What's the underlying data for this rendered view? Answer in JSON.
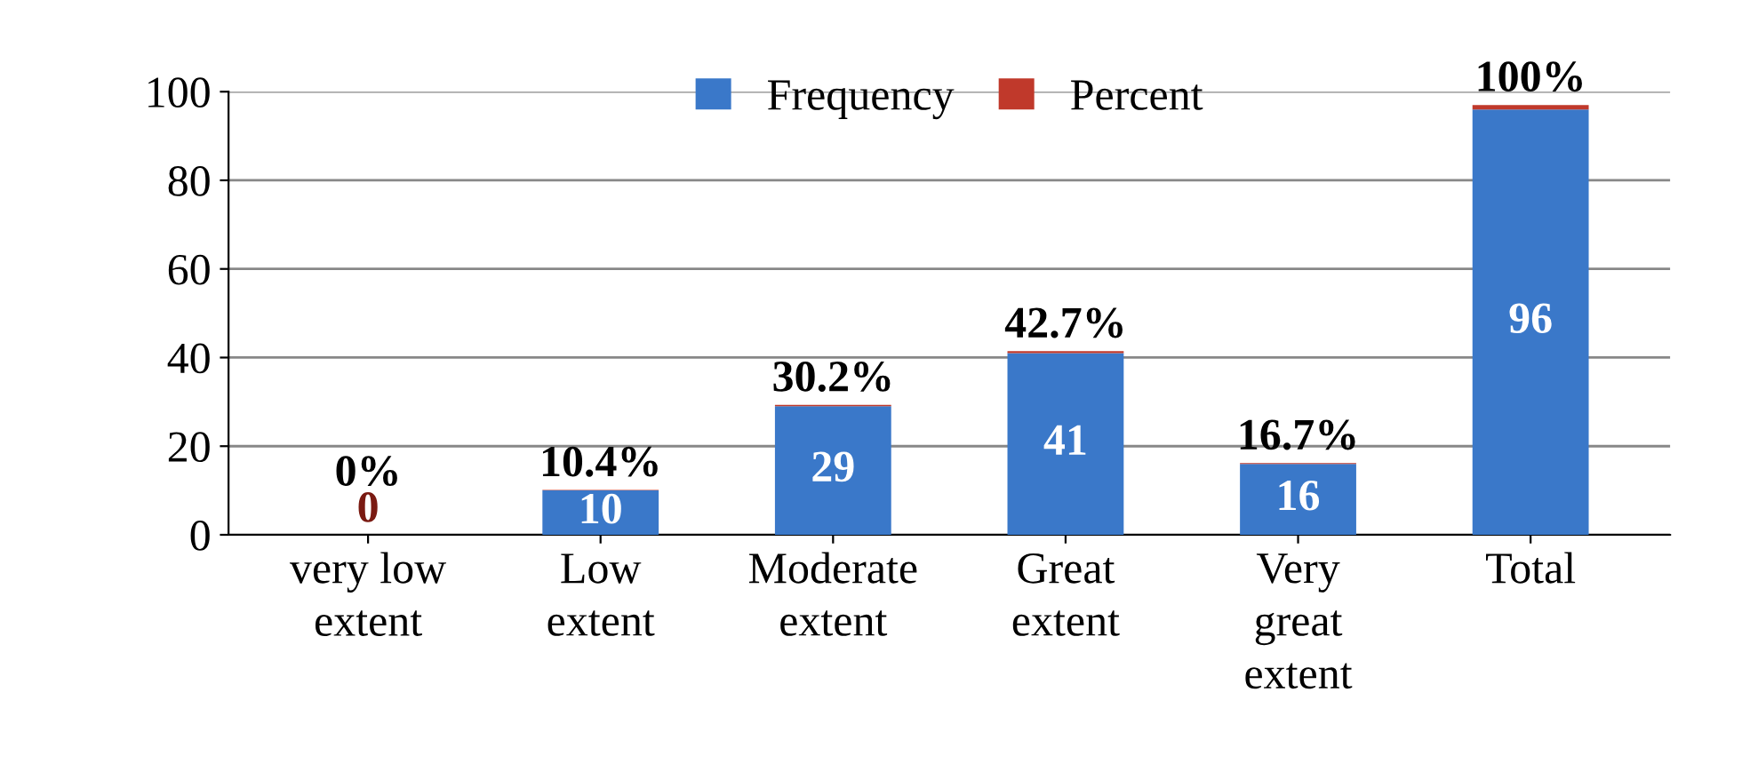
{
  "chart_data": {
    "type": "bar",
    "stacked": true,
    "categories": [
      "very low\nextent",
      "Low\nextent",
      "Moderate\nextent",
      "Great\nextent",
      "Very\ngreat\nextent",
      "Total"
    ],
    "series": [
      {
        "name": "Frequency",
        "color": "#3a78c9",
        "values": [
          0,
          10,
          29,
          41,
          16,
          96
        ],
        "value_labels": [
          "0",
          "10",
          "29",
          "41",
          "16",
          "96"
        ]
      },
      {
        "name": "Percent",
        "color": "#c0392b",
        "values": [
          0,
          0.104,
          0.302,
          0.427,
          0.167,
          1
        ],
        "value_labels": [
          "0%",
          "10.4%",
          "30.2%",
          "42.7%",
          "16.7%",
          "100%"
        ]
      }
    ],
    "ylim": [
      0,
      100
    ],
    "yticks": [
      0,
      20,
      40,
      60,
      80,
      100
    ],
    "grid": "y",
    "legend": "top"
  }
}
